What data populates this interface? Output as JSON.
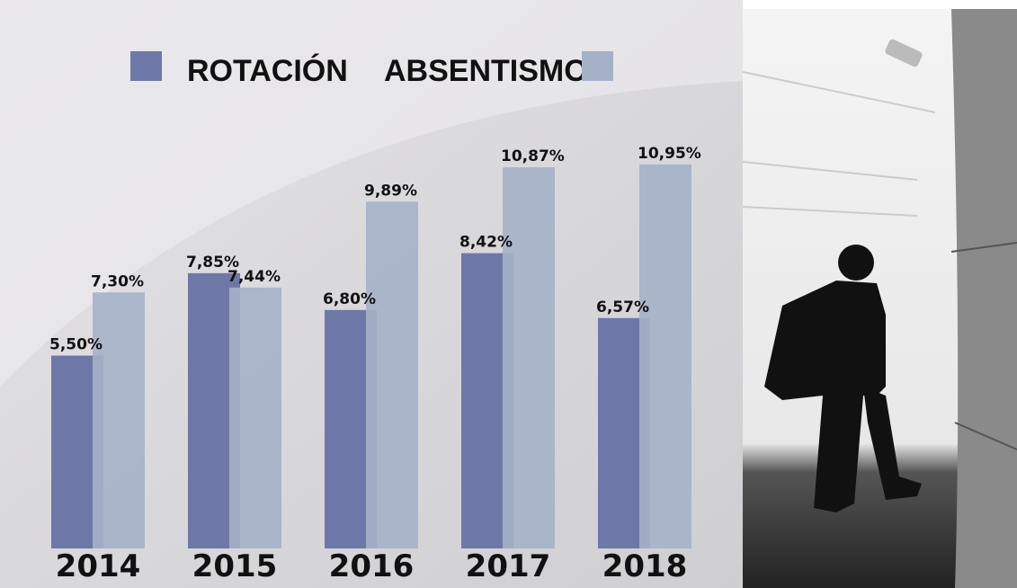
{
  "chart_data": {
    "type": "bar",
    "categories": [
      "2014",
      "2015",
      "2016",
      "2017",
      "2018"
    ],
    "series": [
      {
        "name": "ROTACIÓN",
        "color": "#6e78a8",
        "values": [
          5.5,
          7.85,
          6.8,
          8.42,
          6.57
        ],
        "value_labels": [
          "5,50%",
          "7,85%",
          "6,80%",
          "8,42%",
          "6,57%"
        ]
      },
      {
        "name": "ABSENTISMO",
        "color": "#a4b1c6",
        "values": [
          7.3,
          7.44,
          9.89,
          10.87,
          10.95
        ],
        "value_labels": [
          "7,30%",
          "7,44%",
          "9,89%",
          "10,87%",
          "10,95%"
        ]
      }
    ]
  }
}
